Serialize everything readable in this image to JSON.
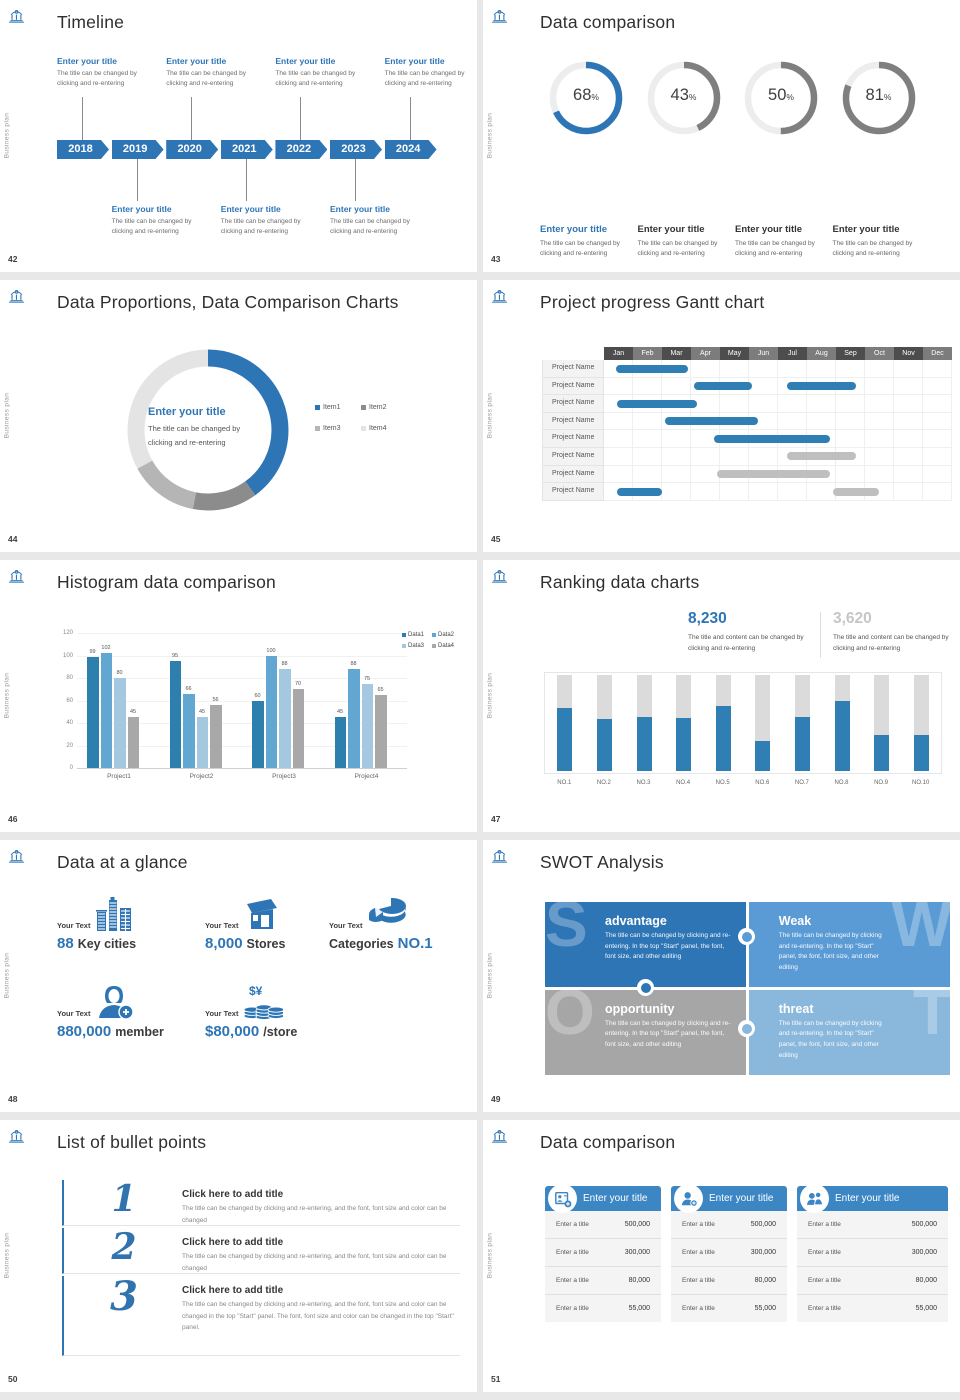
{
  "colors": {
    "primary_blue": "#2e75b6",
    "medium_blue": "#5b9bd5",
    "light_blue": "#9dc3e6",
    "bar_blue": "#2f7fb5",
    "bar_gray": "#bfbfbf",
    "gray": "#a6a6a6",
    "track_gray": "#dbdbdb",
    "card_header_blue": "#3d86c4"
  },
  "branding": {
    "side_label": "Business plan",
    "logo": "pavilion-logo"
  },
  "slides": {
    "timeline": {
      "page": "42",
      "title": "Timeline",
      "years": [
        "2018",
        "2019",
        "2020",
        "2021",
        "2022",
        "2023",
        "2024"
      ],
      "above_indices": [
        0,
        2,
        4,
        6
      ],
      "below_indices": [
        1,
        3,
        5
      ],
      "item_title": "Enter your title",
      "item_body": "The title can be changed by clicking and re-entering"
    },
    "rings": {
      "page": "43",
      "title": "Data comparison",
      "item_title": "Enter your title",
      "item_body": "The title can be changed by clicking and re-entering",
      "chart_data": {
        "type": "donut-gauges",
        "values_pct": [
          68,
          43,
          50,
          81
        ],
        "accent_index": 0
      }
    },
    "donut": {
      "page": "44",
      "title": "Data Proportions, Data Comparison Charts",
      "center_title": "Enter your title",
      "center_body": "The title can be changed by clicking and re-entering",
      "chart_data": {
        "type": "pie",
        "legend": [
          "Item1",
          "Item2",
          "Item3",
          "Item4"
        ],
        "values_pct": [
          40,
          13,
          14,
          33
        ],
        "colors": [
          "#2e75b6",
          "#8c8c8c",
          "#b5b5b5",
          "#e4e4e4"
        ]
      }
    },
    "gantt": {
      "page": "45",
      "title": "Project progress Gantt chart",
      "months": [
        "Jan",
        "Feb",
        "Mar",
        "Apr",
        "May",
        "Jun",
        "Jul",
        "Aug",
        "Sep",
        "Oct",
        "Nov",
        "Dec"
      ],
      "row_label": "Project Name",
      "chart_data": {
        "type": "gantt",
        "rows": [
          [
            [
              0.4,
              2.9,
              "blue"
            ]
          ],
          [
            [
              3.1,
              5.1,
              "blue"
            ],
            [
              6.3,
              8.7,
              "blue"
            ]
          ],
          [
            [
              0.45,
              3.2,
              "blue"
            ]
          ],
          [
            [
              2.1,
              5.3,
              "blue"
            ]
          ],
          [
            [
              3.8,
              7.8,
              "blue"
            ]
          ],
          [
            [
              6.3,
              8.7,
              "gray"
            ]
          ],
          [
            [
              3.9,
              7.8,
              "gray"
            ]
          ],
          [
            [
              0.45,
              2.0,
              "blue"
            ],
            [
              7.9,
              9.5,
              "gray"
            ]
          ]
        ]
      }
    },
    "histogram": {
      "page": "46",
      "title": "Histogram data comparison",
      "chart_data": {
        "type": "bar",
        "categories": [
          "Project1",
          "Project2",
          "Project3",
          "Project4"
        ],
        "series": [
          {
            "name": "Data1",
            "color": "#2d7fae",
            "values": [
              99,
              95,
              60,
              45
            ]
          },
          {
            "name": "Data2",
            "color": "#62a7d2",
            "values": [
              102,
              66,
              100,
              88
            ]
          },
          {
            "name": "Data3",
            "color": "#a5c8e1",
            "values": [
              80,
              45,
              88,
              75
            ]
          },
          {
            "name": "Data4",
            "color": "#a8a8a8",
            "values": [
              45,
              56,
              70,
              65
            ]
          }
        ],
        "ylim": [
          0,
          120
        ],
        "yticks": [
          0,
          20,
          40,
          60,
          80,
          100,
          120
        ]
      }
    },
    "ranking": {
      "page": "47",
      "title": "Ranking data charts",
      "stats": [
        {
          "value": "8,230",
          "body": "The title and content can be changed by clicking and re-entering"
        },
        {
          "value": "3,620",
          "body": "The title and content can be changed by clicking and re-entering"
        }
      ],
      "chart_data": {
        "type": "bar",
        "categories": [
          "NO.1",
          "NO.2",
          "NO.3",
          "NO.4",
          "NO.5",
          "NO.6",
          "NO.7",
          "NO.8",
          "NO.9",
          "NO.10"
        ],
        "values_pct": [
          66,
          54,
          56,
          55,
          68,
          31,
          56,
          73,
          37,
          38
        ]
      }
    },
    "glance": {
      "page": "48",
      "title": "Data at a glance",
      "label": "Your Text",
      "items": [
        {
          "icon": "city-icon",
          "parts": [
            {
              "text": "88",
              "accent": true
            },
            {
              "text": "Key cities",
              "accent": false
            }
          ]
        },
        {
          "icon": "store-icon",
          "parts": [
            {
              "text": "8,000",
              "accent": true
            },
            {
              "text": "Stores",
              "accent": false
            }
          ]
        },
        {
          "icon": "pie-icon",
          "parts": [
            {
              "text": "Categories",
              "accent": false
            },
            {
              "text": "NO.1",
              "accent": true
            }
          ]
        },
        {
          "icon": "member-icon",
          "parts": [
            {
              "text": "880,000",
              "accent": true
            },
            {
              "text": "member",
              "accent": false
            }
          ]
        },
        {
          "icon": "coins-icon",
          "parts": [
            {
              "text": "$80,000",
              "accent": true
            },
            {
              "text": "/store",
              "accent": false
            }
          ]
        }
      ]
    },
    "swot": {
      "page": "49",
      "title": "SWOT Analysis",
      "quads": [
        {
          "letter": "S",
          "heading": "advantage",
          "color": "#2e75b6",
          "body": "The title can be changed by clicking and re-entering. In the top \"Start\" panel, the font, font size, and other editing"
        },
        {
          "letter": "W",
          "heading": "Weak",
          "color": "#5b9bd5",
          "body": "The title can be changed by clicking and re-entering. In the top \"Start\" panel, the font, font size, and other editing"
        },
        {
          "letter": "O",
          "heading": "opportunity",
          "color": "#a6a6a6",
          "body": "The title can be changed by clicking and re-entering. In the top \"Start\" panel, the font, font size, and other editing"
        },
        {
          "letter": "T",
          "heading": "threat",
          "color": "#8ab7dc",
          "body": "The title can be changed by clicking and re-entering. In the top \"Start\" panel, the font, font size, and other editing"
        }
      ]
    },
    "bullets": {
      "page": "50",
      "title": "List of bullet points",
      "items": [
        {
          "num": "1",
          "heading": "Click here to add title",
          "body": "The title can be changed by clicking and re-entering, and the font, font size and color can be changed"
        },
        {
          "num": "2",
          "heading": "Click here to add title",
          "body": "The title can be changed by clicking and re-entering, and the font, font size and color can be changed"
        },
        {
          "num": "3",
          "heading": "Click here to add title",
          "body": "The title can be changed by clicking and re-entering, and the font, font size and color can be changed in the top \"Start\" panel. The font, font size and color can be changed in the top \"Start\" panel."
        }
      ]
    },
    "tables": {
      "page": "51",
      "title": "Data comparison",
      "header": "Enter your title",
      "row_label": "Enter a title",
      "icons": [
        "id-card-plus-icon",
        "person-plus-icon",
        "people-icon"
      ],
      "values": [
        "500,000",
        "300,000",
        "80,000",
        "55,000"
      ]
    }
  }
}
